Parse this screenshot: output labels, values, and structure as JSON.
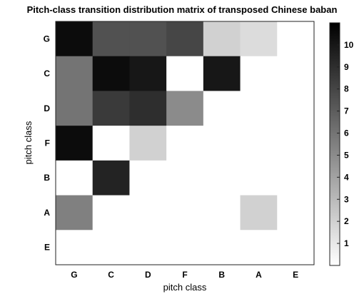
{
  "chart_data": {
    "type": "heatmap",
    "title": "Pitch-class transition distribution matrix of transposed Chinese baban",
    "xlabel": "pitch class",
    "ylabel": "pitch class",
    "x_categories": [
      "G",
      "C",
      "D",
      "F",
      "B",
      "A",
      "E"
    ],
    "y_categories": [
      "G",
      "C",
      "D",
      "F",
      "B",
      "A",
      "E"
    ],
    "values": [
      [
        10.5,
        7.5,
        7.5,
        8,
        2,
        1.5,
        0
      ],
      [
        6,
        10.5,
        10,
        0,
        10,
        0,
        0
      ],
      [
        6,
        8.5,
        9,
        5,
        0,
        0,
        0
      ],
      [
        10.5,
        0,
        2,
        0,
        0,
        0,
        0
      ],
      [
        0,
        9.5,
        0,
        0,
        0,
        0,
        0
      ],
      [
        5.5,
        0,
        0,
        0,
        0,
        2,
        0
      ],
      [
        0,
        0,
        0,
        0,
        0,
        0,
        0
      ]
    ],
    "colorbar": {
      "ticks": [
        "1",
        "2",
        "3",
        "4",
        "5",
        "6",
        "7",
        "8",
        "9",
        "10"
      ],
      "min": 0,
      "max": 11,
      "colormap": "gray (white = low, black = high)"
    },
    "grid": false
  }
}
